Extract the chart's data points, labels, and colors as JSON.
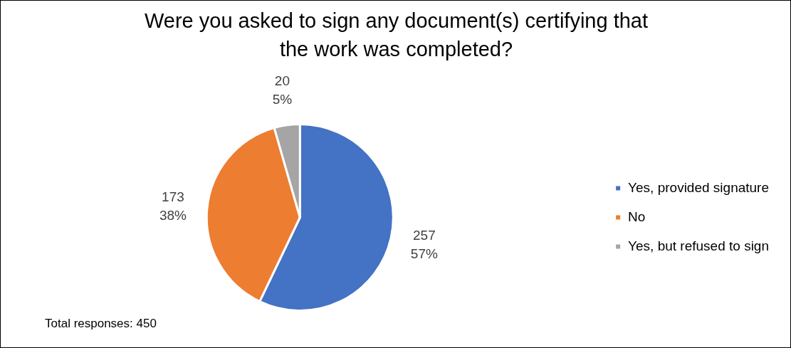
{
  "chart_data": {
    "type": "pie",
    "title": "Were you asked to sign any document(s) certifying that the work was completed?",
    "categories": [
      "Yes, provided signature",
      "No",
      "Yes, but refused to sign"
    ],
    "values": [
      257,
      173,
      20
    ],
    "colors": [
      "#4472c4",
      "#ed7d31",
      "#a5a5a5"
    ],
    "value_labels": [
      "257\n57%",
      "173\n38%",
      "20\n5%"
    ],
    "legend": "right",
    "annotations": [
      "Total responses: 450"
    ]
  }
}
